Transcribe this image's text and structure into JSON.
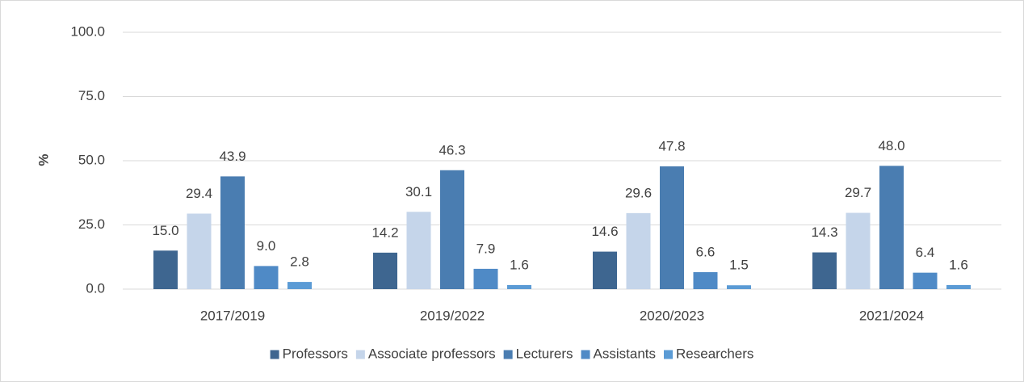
{
  "chart_data": {
    "type": "bar",
    "categories": [
      "2017/2019",
      "2019/2022",
      "2020/2023",
      "2021/2024"
    ],
    "series": [
      {
        "name": "Professors",
        "color": "#3e6690",
        "values": [
          15.0,
          14.2,
          14.6,
          14.3
        ],
        "value_labels": [
          "15.0",
          "14.2",
          "14.6",
          "14.3"
        ]
      },
      {
        "name": "Associate professors",
        "color": "#c5d5ea",
        "values": [
          29.4,
          30.1,
          29.6,
          29.7
        ],
        "value_labels": [
          "29.4",
          "30.1",
          "29.6",
          "29.7"
        ]
      },
      {
        "name": "Lecturers",
        "color": "#4a7db1",
        "values": [
          43.9,
          46.3,
          47.8,
          48.0
        ],
        "value_labels": [
          "43.9",
          "46.3",
          "47.8",
          "48.0"
        ]
      },
      {
        "name": "Assistants",
        "color": "#4f8ac6",
        "values": [
          9.0,
          7.9,
          6.6,
          6.4
        ],
        "value_labels": [
          "9.0",
          "7.9",
          "6.6",
          "6.4"
        ]
      },
      {
        "name": "Researchers",
        "color": "#5b9bd5",
        "values": [
          2.8,
          1.6,
          1.5,
          1.6
        ],
        "value_labels": [
          "2.8",
          "1.6",
          "1.5",
          "1.6"
        ]
      }
    ],
    "y_label": "%",
    "ylim": [
      0,
      100
    ],
    "yticks": [
      {
        "value": 0,
        "label": "0.0"
      },
      {
        "value": 25,
        "label": "25.0"
      },
      {
        "value": 50,
        "label": "50.0"
      },
      {
        "value": 75,
        "label": "75.0"
      },
      {
        "value": 100,
        "label": "100.0"
      }
    ],
    "grid": true,
    "legend": "bottom"
  }
}
